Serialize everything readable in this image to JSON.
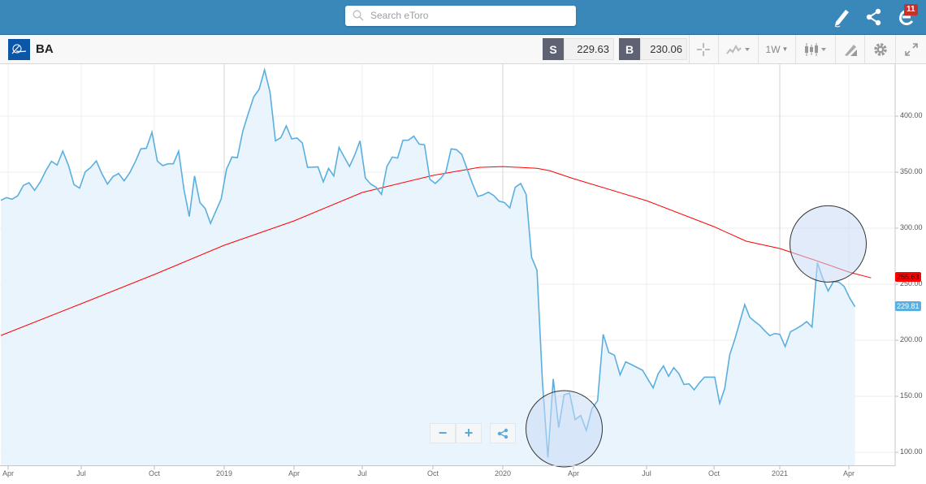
{
  "header": {
    "search_placeholder": "Search eToro",
    "notification_count": "11",
    "icons": [
      "search-icon",
      "pencil-icon",
      "share-icon",
      "etoro-e-icon"
    ]
  },
  "toolbar": {
    "symbol": "BA",
    "sell_label": "S",
    "sell_price": "229.63",
    "buy_label": "B",
    "buy_price": "230.06",
    "timeframe": "1W",
    "icons": [
      "crosshair-icon",
      "chart-type-icon",
      "candlestick-icon",
      "drawing-tool-icon",
      "gear-icon",
      "expand-icon"
    ]
  },
  "zoom_controls": {
    "minus": "−",
    "plus": "+"
  },
  "colors": {
    "price_line": "#5aafdf",
    "price_fill": "#eaf4fc",
    "moving_average": "#ff0000",
    "topbar": "#3a87ba",
    "annotation_fill": "#c8dbf5"
  },
  "chart_data": {
    "type": "area",
    "grid": true,
    "y_axis_position": "right",
    "ylim": [
      90,
      455
    ],
    "y_ticks": [
      "100.00",
      "150.00",
      "200.00",
      "250.00",
      "300.00",
      "350.00",
      "400.00"
    ],
    "x_ticks": [
      {
        "label": "Apr",
        "date": "2018-04-01"
      },
      {
        "label": "Jul",
        "date": "2018-07-01"
      },
      {
        "label": "Oct",
        "date": "2018-10-01"
      },
      {
        "label": "2019",
        "date": "2019-01-01"
      },
      {
        "label": "Apr",
        "date": "2019-04-01"
      },
      {
        "label": "Jul",
        "date": "2019-07-01"
      },
      {
        "label": "Oct",
        "date": "2019-10-01"
      },
      {
        "label": "2020",
        "date": "2020-01-01"
      },
      {
        "label": "Apr",
        "date": "2020-04-01"
      },
      {
        "label": "Jul",
        "date": "2020-07-01"
      },
      {
        "label": "Oct",
        "date": "2020-10-01"
      },
      {
        "label": "2021",
        "date": "2021-01-01"
      },
      {
        "label": "Apr",
        "date": "2021-04-01"
      }
    ],
    "price": {
      "last_value_label": "229.81",
      "dates": [
        "2018-03-23",
        "2018-03-30",
        "2018-04-06",
        "2018-04-13",
        "2018-04-20",
        "2018-04-27",
        "2018-05-04",
        "2018-05-11",
        "2018-05-18",
        "2018-05-25",
        "2018-06-01",
        "2018-06-08",
        "2018-06-15",
        "2018-06-22",
        "2018-06-29",
        "2018-07-06",
        "2018-07-13",
        "2018-07-20",
        "2018-07-27",
        "2018-08-03",
        "2018-08-10",
        "2018-08-17",
        "2018-08-24",
        "2018-08-31",
        "2018-09-07",
        "2018-09-14",
        "2018-09-21",
        "2018-09-28",
        "2018-10-05",
        "2018-10-12",
        "2018-10-19",
        "2018-10-26",
        "2018-11-02",
        "2018-11-09",
        "2018-11-16",
        "2018-11-23",
        "2018-11-30",
        "2018-12-07",
        "2018-12-14",
        "2018-12-21",
        "2018-12-28",
        "2019-01-04",
        "2019-01-11",
        "2019-01-18",
        "2019-01-25",
        "2019-02-01",
        "2019-02-08",
        "2019-02-15",
        "2019-02-22",
        "2019-03-01",
        "2019-03-08",
        "2019-03-15",
        "2019-03-22",
        "2019-03-29",
        "2019-04-05",
        "2019-04-12",
        "2019-04-19",
        "2019-04-26",
        "2019-05-03",
        "2019-05-10",
        "2019-05-17",
        "2019-05-24",
        "2019-05-31",
        "2019-06-07",
        "2019-06-14",
        "2019-06-21",
        "2019-06-28",
        "2019-07-05",
        "2019-07-12",
        "2019-07-19",
        "2019-07-26",
        "2019-08-02",
        "2019-08-09",
        "2019-08-16",
        "2019-08-23",
        "2019-08-30",
        "2019-09-06",
        "2019-09-13",
        "2019-09-20",
        "2019-09-27",
        "2019-10-04",
        "2019-10-11",
        "2019-10-18",
        "2019-10-25",
        "2019-11-01",
        "2019-11-08",
        "2019-11-15",
        "2019-11-22",
        "2019-11-29",
        "2019-12-06",
        "2019-12-13",
        "2019-12-20",
        "2019-12-27",
        "2020-01-03",
        "2020-01-10",
        "2020-01-17",
        "2020-01-24",
        "2020-01-31",
        "2020-02-07",
        "2020-02-14",
        "2020-02-21",
        "2020-02-28",
        "2020-03-06",
        "2020-03-13",
        "2020-03-20",
        "2020-03-27",
        "2020-04-03",
        "2020-04-10",
        "2020-04-17",
        "2020-04-24",
        "2020-05-01",
        "2020-05-08",
        "2020-05-15",
        "2020-05-22",
        "2020-05-29",
        "2020-06-05",
        "2020-06-12",
        "2020-06-19",
        "2020-06-26",
        "2020-07-03",
        "2020-07-10",
        "2020-07-17",
        "2020-07-24",
        "2020-07-31",
        "2020-08-07",
        "2020-08-14",
        "2020-08-21",
        "2020-08-28",
        "2020-09-04",
        "2020-09-11",
        "2020-09-18",
        "2020-09-25",
        "2020-10-02",
        "2020-10-09",
        "2020-10-16",
        "2020-10-23",
        "2020-10-30",
        "2020-11-06",
        "2020-11-13",
        "2020-11-20",
        "2020-11-27",
        "2020-12-04",
        "2020-12-11",
        "2020-12-18",
        "2020-12-25",
        "2021-01-01",
        "2021-01-08",
        "2021-01-15",
        "2021-01-22",
        "2021-01-29",
        "2021-02-05",
        "2021-02-12",
        "2021-02-19",
        "2021-02-26",
        "2021-03-05",
        "2021-03-12",
        "2021-03-19",
        "2021-03-26",
        "2021-04-02",
        "2021-04-09"
      ],
      "values": [
        324.9,
        327.3,
        325.9,
        329,
        338.2,
        340.6,
        333.8,
        341.3,
        351.4,
        359.7,
        356.3,
        368.8,
        356.3,
        338.9,
        335.7,
        350.2,
        354.3,
        360.1,
        348.6,
        339.4,
        346.1,
        348.8,
        342.3,
        349.5,
        359.2,
        370.8,
        371.3,
        385.7,
        359.9,
        355.8,
        357.5,
        357.5,
        368.8,
        334.5,
        310.4,
        346.6,
        322.9,
        317.6,
        304.3,
        315.2,
        326.1,
        352.7,
        363.5,
        363,
        386.5,
        402.2,
        417.1,
        423.9,
        441.3,
        421.5,
        378,
        380.9,
        391.3,
        379.7,
        380.4,
        376.1,
        354.3,
        354.5,
        354.7,
        341.3,
        353.4,
        346.6,
        372,
        363.5,
        355.1,
        365.5,
        378,
        344.7,
        339.4,
        336.5,
        330.2,
        355.1,
        363.5,
        362.6,
        378.5,
        378.5,
        382.1,
        375.1,
        374.4,
        343.7,
        339.9,
        344.2,
        350.2,
        370.8,
        370.1,
        365.9,
        352.7,
        339.9,
        328.3,
        329.7,
        332.1,
        329.2,
        324.1,
        323,
        318.1,
        336.5,
        339.9,
        330.2,
        274.1,
        262.5,
        163,
        95.4,
        165.5,
        122,
        151.4,
        152.9,
        129.2,
        132.9,
        119.6,
        138.9,
        146.1,
        205.3,
        189.1,
        186.7,
        169.1,
        180.7,
        178.3,
        175.8,
        173.2,
        165,
        157.5,
        170.3,
        177.1,
        167.9,
        175.6,
        170.3,
        160.6,
        161.1,
        155.8,
        162,
        167.1,
        167.1,
        167.1,
        143.7,
        157,
        187.2,
        200.5,
        216.2,
        231.9,
        220.5,
        216.7,
        213.3,
        208.5,
        204.1,
        206,
        205.3,
        194.4,
        207.7,
        210.1,
        213,
        216.7,
        211.8,
        269.3,
        255.3,
        244,
        252.4,
        251.9,
        248,
        237.9,
        229.9
      ]
    },
    "moving_average": {
      "last_value_label": "255.63",
      "dates": [
        "2018-03-23",
        "2018-07-01",
        "2018-10-01",
        "2019-01-01",
        "2019-04-01",
        "2019-07-01",
        "2019-10-01",
        "2019-12-01",
        "2020-01-01",
        "2020-02-14",
        "2020-03-01",
        "2020-04-01",
        "2020-07-01",
        "2020-10-01",
        "2020-11-15",
        "2021-01-01",
        "2021-02-15",
        "2021-04-01",
        "2021-04-30"
      ],
      "values": [
        204.3,
        232.6,
        258.7,
        284.8,
        306.5,
        331.9,
        347.1,
        354.3,
        355,
        353.5,
        351.4,
        344.2,
        324.6,
        301.4,
        288.4,
        281.9,
        271.7,
        260.9,
        255.63
      ]
    },
    "annotations": [
      {
        "type": "circle",
        "date": "2020-03-20",
        "price": 121
      },
      {
        "type": "circle",
        "date": "2021-03-05",
        "price": 286
      }
    ]
  }
}
